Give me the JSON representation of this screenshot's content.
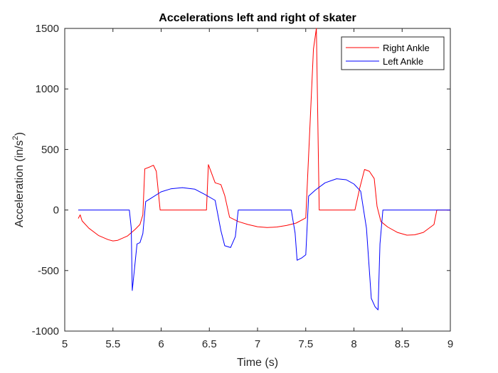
{
  "chart_data": {
    "type": "line",
    "title": "Accelerations left and right of skater",
    "xlabel": "Time (s)",
    "ylabel_main": "Acceleration (in/s",
    "ylabel_sup": "2",
    "ylabel_close": ")",
    "xlim": [
      5,
      9
    ],
    "ylim": [
      -1000,
      1500
    ],
    "xticks": [
      5,
      5.5,
      6,
      6.5,
      7,
      7.5,
      8,
      8.5,
      9
    ],
    "xtick_labels": [
      "5",
      "5.5",
      "6",
      "6.5",
      "7",
      "7.5",
      "8",
      "8.5",
      "9"
    ],
    "yticks": [
      -1000,
      -500,
      0,
      500,
      1000,
      1500
    ],
    "ytick_labels": [
      "-1000",
      "-500",
      "0",
      "500",
      "1000",
      "1500"
    ],
    "grid": false,
    "legend_position": "top-right",
    "series": [
      {
        "name": "Right Ankle",
        "color": "#ff0000",
        "points": [
          [
            5.14,
            -70
          ],
          [
            5.16,
            -40
          ],
          [
            5.18,
            -90
          ],
          [
            5.25,
            -150
          ],
          [
            5.35,
            -210
          ],
          [
            5.45,
            -245
          ],
          [
            5.5,
            -255
          ],
          [
            5.55,
            -250
          ],
          [
            5.65,
            -215
          ],
          [
            5.73,
            -160
          ],
          [
            5.78,
            -120
          ],
          [
            5.81,
            -40
          ],
          [
            5.83,
            340
          ],
          [
            5.88,
            355
          ],
          [
            5.92,
            370
          ],
          [
            5.95,
            320
          ],
          [
            5.99,
            0
          ],
          [
            6.47,
            0
          ],
          [
            6.49,
            375
          ],
          [
            6.56,
            225
          ],
          [
            6.62,
            210
          ],
          [
            6.66,
            120
          ],
          [
            6.71,
            -60
          ],
          [
            6.8,
            -95
          ],
          [
            6.9,
            -120
          ],
          [
            7.0,
            -138
          ],
          [
            7.1,
            -145
          ],
          [
            7.2,
            -140
          ],
          [
            7.3,
            -128
          ],
          [
            7.4,
            -108
          ],
          [
            7.5,
            -65
          ],
          [
            7.55,
            800
          ],
          [
            7.58,
            1330
          ],
          [
            7.61,
            1500
          ],
          [
            7.64,
            0
          ],
          [
            8.01,
            0
          ],
          [
            8.06,
            180
          ],
          [
            8.11,
            335
          ],
          [
            8.16,
            320
          ],
          [
            8.21,
            260
          ],
          [
            8.24,
            30
          ],
          [
            8.28,
            -95
          ],
          [
            8.35,
            -140
          ],
          [
            8.45,
            -185
          ],
          [
            8.55,
            -208
          ],
          [
            8.63,
            -205
          ],
          [
            8.72,
            -185
          ],
          [
            8.83,
            -120
          ],
          [
            8.86,
            0
          ],
          [
            9.0,
            0
          ]
        ]
      },
      {
        "name": "Left Ankle",
        "color": "#0000ff",
        "points": [
          [
            5.14,
            0
          ],
          [
            5.67,
            0
          ],
          [
            5.69,
            -150
          ],
          [
            5.7,
            -665
          ],
          [
            5.72,
            -510
          ],
          [
            5.75,
            -280
          ],
          [
            5.78,
            -270
          ],
          [
            5.81,
            -195
          ],
          [
            5.84,
            70
          ],
          [
            5.9,
            100
          ],
          [
            6.0,
            150
          ],
          [
            6.1,
            175
          ],
          [
            6.22,
            185
          ],
          [
            6.35,
            172
          ],
          [
            6.45,
            130
          ],
          [
            6.56,
            80
          ],
          [
            6.62,
            -170
          ],
          [
            6.66,
            -295
          ],
          [
            6.72,
            -310
          ],
          [
            6.77,
            -220
          ],
          [
            6.8,
            0
          ],
          [
            7.35,
            0
          ],
          [
            7.39,
            -190
          ],
          [
            7.41,
            -415
          ],
          [
            7.46,
            -395
          ],
          [
            7.5,
            -370
          ],
          [
            7.53,
            115
          ],
          [
            7.6,
            165
          ],
          [
            7.7,
            225
          ],
          [
            7.82,
            258
          ],
          [
            7.92,
            250
          ],
          [
            8.0,
            215
          ],
          [
            8.07,
            155
          ],
          [
            8.13,
            -150
          ],
          [
            8.18,
            -730
          ],
          [
            8.22,
            -800
          ],
          [
            8.25,
            -825
          ],
          [
            8.27,
            -280
          ],
          [
            8.3,
            0
          ],
          [
            8.87,
            0
          ],
          [
            9.0,
            0
          ]
        ]
      }
    ]
  }
}
